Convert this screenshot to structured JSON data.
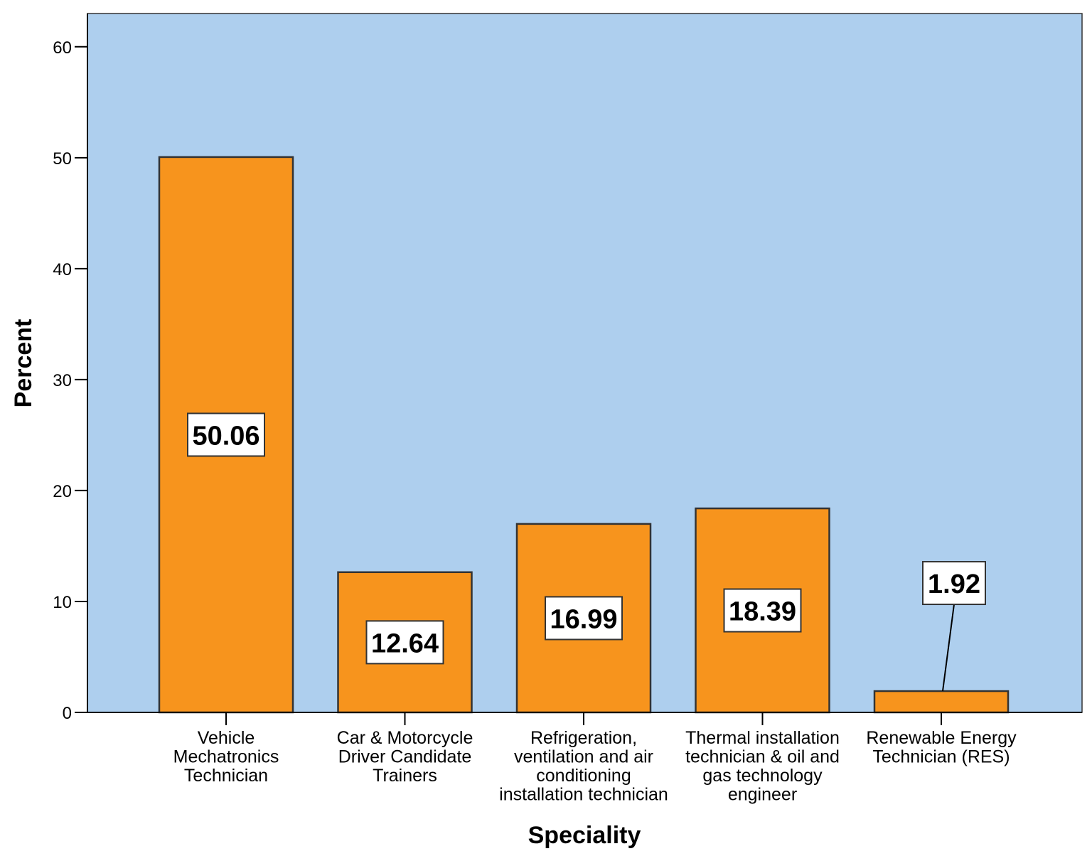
{
  "chart_data": {
    "type": "bar",
    "title": "",
    "xlabel": "Speciality",
    "ylabel": "Percent",
    "ylim": [
      0,
      63
    ],
    "yticks": [
      0,
      10,
      20,
      30,
      40,
      50,
      60
    ],
    "grid": false,
    "categories": [
      [
        "Vehicle",
        "Mechatronics",
        "Technician"
      ],
      [
        "Car & Motorcycle",
        "Driver Candidate",
        "Trainers"
      ],
      [
        "Refrigeration,",
        "ventilation and air",
        "conditioning",
        "installation technician"
      ],
      [
        "Thermal installation",
        "technician & oil and",
        "gas technology",
        "engineer"
      ],
      [
        "Renewable Energy",
        "Technician (RES)"
      ]
    ],
    "values": [
      50.06,
      12.64,
      16.99,
      18.39,
      1.92
    ],
    "data_labels": [
      "50.06",
      "12.64",
      "16.99",
      "18.39",
      "1.92"
    ],
    "colors": {
      "plot_background": "#aecfee",
      "bar_fill": "#f7941d",
      "bar_stroke": "#333333",
      "label_box": "#ffffff"
    }
  }
}
